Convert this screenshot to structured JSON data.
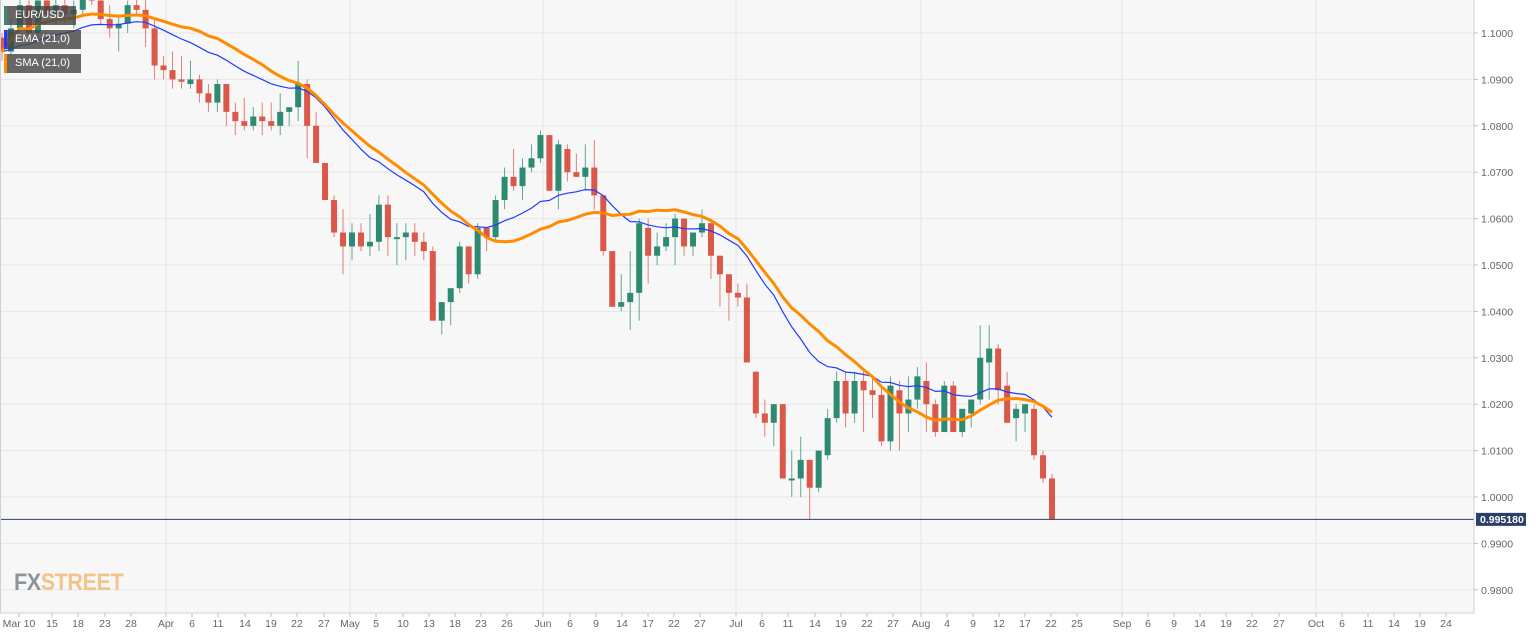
{
  "chart_data": {
    "type": "candlestick",
    "title": "EUR/USD",
    "instrument": "EUR/USD",
    "indicators": [
      {
        "name": "EMA (21,0)",
        "color": "#1f3bff"
      },
      {
        "name": "SMA (21,0)",
        "color": "#ff8c00"
      }
    ],
    "current_price": "0.995180",
    "y_axis": {
      "ticks": [
        "1.1000",
        "1.0900",
        "1.0800",
        "1.0700",
        "1.0600",
        "1.0500",
        "1.0400",
        "1.0300",
        "1.0200",
        "1.0100",
        "1.0000",
        "0.9900",
        "0.9800"
      ],
      "range": [
        0.975,
        1.1075
      ]
    },
    "x_axis": {
      "ticks": [
        "Mar 10",
        "15",
        "18",
        "23",
        "28",
        "Apr",
        "6",
        "11",
        "14",
        "19",
        "22",
        "27",
        "May",
        "5",
        "10",
        "13",
        "18",
        "23",
        "26",
        "Jun",
        "6",
        "9",
        "14",
        "17",
        "22",
        "27",
        "Jul",
        "6",
        "11",
        "14",
        "19",
        "22",
        "27",
        "Aug",
        "4",
        "9",
        "12",
        "17",
        "22",
        "25",
        "Sep",
        "6",
        "9",
        "14",
        "19",
        "22",
        "27",
        "Oct",
        "6",
        "11",
        "14",
        "19",
        "24"
      ]
    },
    "colors": {
      "up": "#2e8b72",
      "down": "#d9584a",
      "ema": "#1f3bff",
      "sma": "#ff8c00",
      "price_line": "#2b3f6b"
    },
    "grid": true,
    "candles": [
      [
        1.099,
        1.1,
        1.094,
        1.096
      ],
      [
        1.096,
        1.103,
        1.095,
        1.101
      ],
      [
        1.101,
        1.108,
        1.098,
        1.106
      ],
      [
        1.106,
        1.107,
        1.098,
        1.1
      ],
      [
        1.1,
        1.109,
        1.099,
        1.107
      ],
      [
        1.107,
        1.11,
        1.102,
        1.104
      ],
      [
        1.104,
        1.108,
        1.102,
        1.106
      ],
      [
        1.106,
        1.109,
        1.102,
        1.104
      ],
      [
        1.104,
        1.107,
        1.101,
        1.105
      ],
      [
        1.105,
        1.11,
        1.104,
        1.109
      ],
      [
        1.109,
        1.111,
        1.106,
        1.107
      ],
      [
        1.107,
        1.108,
        1.102,
        1.103
      ],
      [
        1.103,
        1.106,
        1.099,
        1.101
      ],
      [
        1.101,
        1.104,
        1.096,
        1.102
      ],
      [
        1.102,
        1.107,
        1.1,
        1.106
      ],
      [
        1.106,
        1.108,
        1.104,
        1.105
      ],
      [
        1.105,
        1.108,
        1.097,
        1.101
      ],
      [
        1.101,
        1.103,
        1.09,
        1.093
      ],
      [
        1.093,
        1.095,
        1.09,
        1.092
      ],
      [
        1.092,
        1.096,
        1.088,
        1.09
      ],
      [
        1.09,
        1.095,
        1.088,
        1.0895
      ],
      [
        1.089,
        1.094,
        1.088,
        1.09
      ],
      [
        1.09,
        1.091,
        1.085,
        1.087
      ],
      [
        1.087,
        1.089,
        1.083,
        1.085
      ],
      [
        1.085,
        1.09,
        1.083,
        1.089
      ],
      [
        1.089,
        1.089,
        1.08,
        1.083
      ],
      [
        1.083,
        1.085,
        1.078,
        1.081
      ],
      [
        1.081,
        1.086,
        1.079,
        1.08
      ],
      [
        1.08,
        1.084,
        1.079,
        1.082
      ],
      [
        1.082,
        1.085,
        1.078,
        1.081
      ],
      [
        1.081,
        1.085,
        1.079,
        1.08
      ],
      [
        1.08,
        1.087,
        1.078,
        1.083
      ],
      [
        1.083,
        1.084,
        1.08,
        1.084
      ],
      [
        1.084,
        1.094,
        1.081,
        1.089
      ],
      [
        1.089,
        1.09,
        1.073,
        1.08
      ],
      [
        1.08,
        1.083,
        1.073,
        1.072
      ],
      [
        1.072,
        1.069,
        1.071,
        1.064
      ],
      [
        1.064,
        1.065,
        1.056,
        1.057
      ],
      [
        1.057,
        1.062,
        1.048,
        1.054
      ],
      [
        1.054,
        1.059,
        1.051,
        1.057
      ],
      [
        1.057,
        1.059,
        1.053,
        1.054
      ],
      [
        1.054,
        1.061,
        1.052,
        1.055
      ],
      [
        1.055,
        1.065,
        1.053,
        1.063
      ],
      [
        1.063,
        1.065,
        1.052,
        1.056
      ],
      [
        1.056,
        1.059,
        1.05,
        1.056
      ],
      [
        1.056,
        1.059,
        1.051,
        1.057
      ],
      [
        1.057,
        1.059,
        1.052,
        1.055
      ],
      [
        1.055,
        1.057,
        1.051,
        1.053
      ],
      [
        1.053,
        1.054,
        1.038,
        1.038
      ],
      [
        1.038,
        1.042,
        1.035,
        1.042
      ],
      [
        1.042,
        1.045,
        1.037,
        1.045
      ],
      [
        1.045,
        1.055,
        1.044,
        1.054
      ],
      [
        1.054,
        1.054,
        1.046,
        1.048
      ],
      [
        1.048,
        1.059,
        1.047,
        1.058
      ],
      [
        1.058,
        1.058,
        1.053,
        1.056
      ],
      [
        1.056,
        1.065,
        1.055,
        1.064
      ],
      [
        1.064,
        1.071,
        1.062,
        1.069
      ],
      [
        1.069,
        1.075,
        1.066,
        1.067
      ],
      [
        1.067,
        1.073,
        1.064,
        1.071
      ],
      [
        1.071,
        1.076,
        1.07,
        1.073
      ],
      [
        1.073,
        1.079,
        1.072,
        1.078
      ],
      [
        1.078,
        1.078,
        1.067,
        1.066
      ],
      [
        1.066,
        1.077,
        1.062,
        1.076
      ],
      [
        1.075,
        1.076,
        1.068,
        1.07
      ],
      [
        1.07,
        1.074,
        1.069,
        1.069
      ],
      [
        1.069,
        1.076,
        1.066,
        1.071
      ],
      [
        1.071,
        1.077,
        1.062,
        1.065
      ],
      [
        1.065,
        1.064,
        1.052,
        1.053
      ],
      [
        1.053,
        1.053,
        1.041,
        1.041
      ],
      [
        1.041,
        1.048,
        1.04,
        1.042
      ],
      [
        1.042,
        1.053,
        1.036,
        1.044
      ],
      [
        1.044,
        1.06,
        1.038,
        1.059
      ],
      [
        1.058,
        1.06,
        1.046,
        1.052
      ],
      [
        1.052,
        1.057,
        1.05,
        1.054
      ],
      [
        1.054,
        1.059,
        1.053,
        1.056
      ],
      [
        1.056,
        1.061,
        1.05,
        1.06
      ],
      [
        1.06,
        1.06,
        1.052,
        1.054
      ],
      [
        1.054,
        1.057,
        1.052,
        1.057
      ],
      [
        1.057,
        1.062,
        1.056,
        1.059
      ],
      [
        1.059,
        1.06,
        1.047,
        1.052
      ],
      [
        1.052,
        1.052,
        1.041,
        1.048
      ],
      [
        1.048,
        1.048,
        1.038,
        1.044
      ],
      [
        1.044,
        1.046,
        1.041,
        1.043
      ],
      [
        1.043,
        1.046,
        1.032,
        1.029
      ],
      [
        1.027,
        1.027,
        1.017,
        1.018
      ],
      [
        1.018,
        1.021,
        1.013,
        1.016
      ],
      [
        1.016,
        1.02,
        1.011,
        1.02
      ],
      [
        1.02,
        1.02,
        1.007,
        1.004
      ],
      [
        1.004,
        1.01,
        1.0,
        1.004
      ],
      [
        1.004,
        1.013,
        1.0,
        1.008
      ],
      [
        1.008,
        1.008,
        0.995,
        1.002
      ],
      [
        1.002,
        1.01,
        1.001,
        1.01
      ],
      [
        1.009,
        1.019,
        1.008,
        1.017
      ],
      [
        1.017,
        1.027,
        1.016,
        1.025
      ],
      [
        1.025,
        1.027,
        1.015,
        1.018
      ],
      [
        1.018,
        1.027,
        1.016,
        1.025
      ],
      [
        1.025,
        1.027,
        1.014,
        1.023
      ],
      [
        1.023,
        1.026,
        1.017,
        1.022
      ],
      [
        1.022,
        1.024,
        1.011,
        1.012
      ],
      [
        1.012,
        1.026,
        1.01,
        1.024
      ],
      [
        1.023,
        1.025,
        1.01,
        1.018
      ],
      [
        1.018,
        1.026,
        1.014,
        1.021
      ],
      [
        1.021,
        1.028,
        1.019,
        1.026
      ],
      [
        1.025,
        1.029,
        1.014,
        1.02
      ],
      [
        1.02,
        1.021,
        1.013,
        1.014
      ],
      [
        1.014,
        1.025,
        1.014,
        1.024
      ],
      [
        1.024,
        1.025,
        1.014,
        1.014
      ],
      [
        1.014,
        1.018,
        1.013,
        1.019
      ],
      [
        1.018,
        1.021,
        1.015,
        1.021
      ],
      [
        1.021,
        1.037,
        1.02,
        1.03
      ],
      [
        1.029,
        1.037,
        1.021,
        1.032
      ],
      [
        1.032,
        1.033,
        1.02,
        1.023
      ],
      [
        1.024,
        1.027,
        1.016,
        1.016
      ],
      [
        1.017,
        1.02,
        1.012,
        1.019
      ],
      [
        1.018,
        1.02,
        1.014,
        1.02
      ],
      [
        1.019,
        1.02,
        1.008,
        1.009
      ],
      [
        1.009,
        1.01,
        1.003,
        1.004
      ],
      [
        1.004,
        1.005,
        0.995,
        0.9952
      ]
    ]
  },
  "legend": {
    "instrument": "EUR/USD",
    "ema_label": "EMA (21,0)",
    "sma_label": "SMA (21,0)"
  },
  "price_tag": "0.995180",
  "logo": {
    "fx": "FX",
    "street": "STREET"
  }
}
